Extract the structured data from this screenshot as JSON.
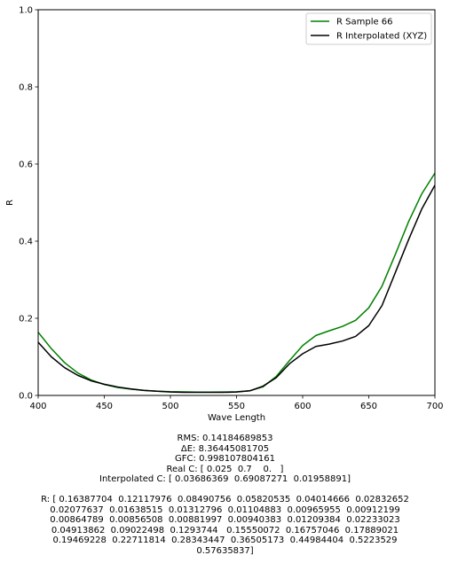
{
  "chart_data": {
    "type": "line",
    "xlabel": "Wave Length",
    "ylabel": "R",
    "xlim": [
      400,
      700
    ],
    "ylim": [
      0,
      1.0
    ],
    "xticks": [
      400,
      450,
      500,
      550,
      600,
      650,
      700
    ],
    "yticks": [
      0.0,
      0.2,
      0.4,
      0.6,
      0.8,
      1.0
    ],
    "xtick_labels": [
      "400",
      "450",
      "500",
      "550",
      "600",
      "650",
      "700"
    ],
    "ytick_labels": [
      "0.0",
      "0.2",
      "0.4",
      "0.6",
      "0.8",
      "1.0"
    ],
    "legend_position": "top-right",
    "x": [
      400,
      410,
      420,
      430,
      440,
      450,
      460,
      470,
      480,
      490,
      500,
      510,
      520,
      530,
      540,
      550,
      560,
      570,
      580,
      590,
      600,
      610,
      620,
      630,
      640,
      650,
      660,
      670,
      680,
      690,
      700
    ],
    "series": [
      {
        "name": "R Sample 66",
        "color": "#008000",
        "values": [
          0.16387704,
          0.12117976,
          0.08490756,
          0.05820535,
          0.04014666,
          0.02832652,
          0.02077637,
          0.01638515,
          0.01312796,
          0.01104883,
          0.00965955,
          0.00912199,
          0.00864789,
          0.00856508,
          0.00881997,
          0.00940383,
          0.01209384,
          0.02233023,
          0.04913862,
          0.09022498,
          0.1293744,
          0.15550072,
          0.16757046,
          0.17889021,
          0.19469228,
          0.22711814,
          0.28343447,
          0.36505173,
          0.44984404,
          0.5223529,
          0.57635837
        ]
      },
      {
        "name": "R Interpolated (XYZ)",
        "color": "#000000",
        "values": [
          0.138,
          0.1,
          0.072,
          0.052,
          0.038,
          0.029,
          0.022,
          0.017,
          0.013,
          0.011,
          0.009,
          0.008,
          0.008,
          0.008,
          0.008,
          0.009,
          0.012,
          0.024,
          0.046,
          0.082,
          0.108,
          0.127,
          0.133,
          0.141,
          0.153,
          0.181,
          0.233,
          0.318,
          0.403,
          0.483,
          0.545
        ]
      }
    ]
  },
  "stats": {
    "rms": "RMS: 0.14184689853",
    "delta_e": "ΔE: 8.36445081705",
    "gfc": "GFC: 0.998107804161",
    "real_c": "Real C: [ 0.025  0.7    0.   ]",
    "interpolated_c": "Interpolated C: [ 0.03686369  0.69087271  0.01958891]",
    "r_lines": [
      "R: [ 0.16387704  0.12117976  0.08490756  0.05820535  0.04014666  0.02832652",
      "0.02077637  0.01638515  0.01312796  0.01104883  0.00965955  0.00912199",
      "0.00864789  0.00856508  0.00881997  0.00940383  0.01209384  0.02233023",
      "0.04913862  0.09022498  0.1293744   0.15550072  0.16757046  0.17889021",
      "0.19469228  0.22711814  0.28343447  0.36505173  0.44984404  0.5223529",
      "0.57635837]"
    ]
  }
}
